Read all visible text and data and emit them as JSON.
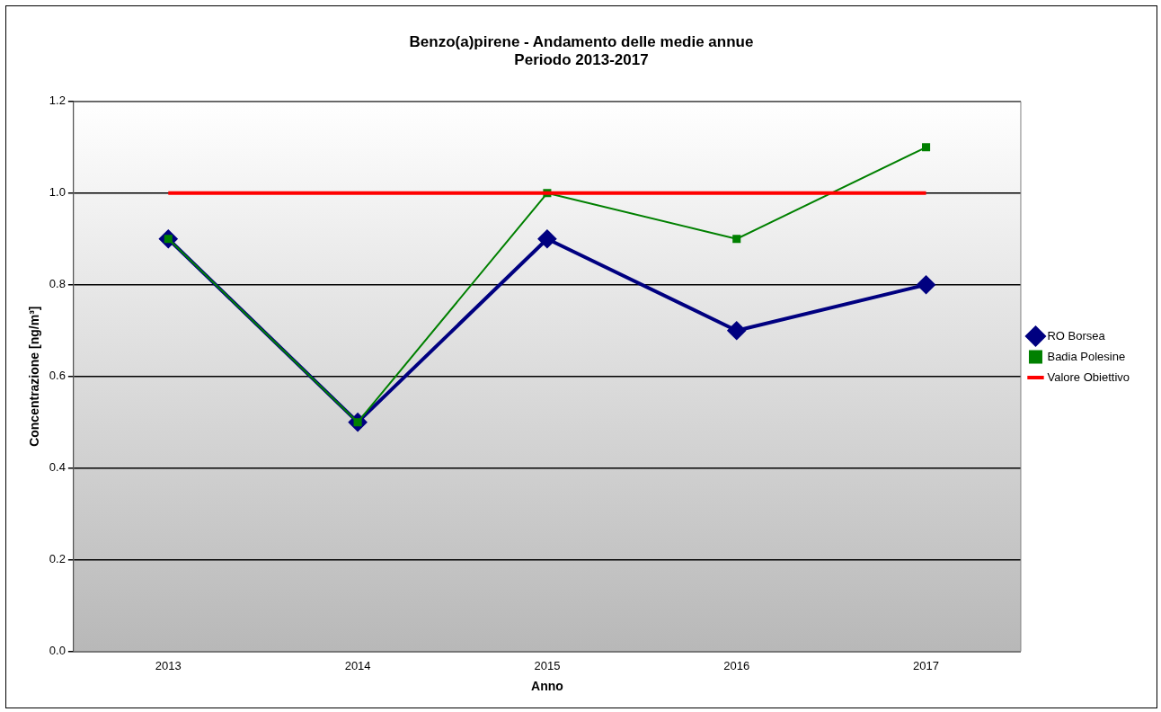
{
  "chart_data": {
    "type": "line",
    "title": "Benzo(a)pirene - Andamento delle medie annue\nPeriodo 2013-2017",
    "xlabel": "Anno",
    "ylabel": "Concentrazione [ng/m³]",
    "categories": [
      "2013",
      "2014",
      "2015",
      "2016",
      "2017"
    ],
    "series": [
      {
        "name": "RO Borsea",
        "color": "#000080",
        "values": [
          0.9,
          0.5,
          0.9,
          0.7,
          0.8
        ],
        "marker": "diamond"
      },
      {
        "name": "Badia Polesine",
        "color": "#008000",
        "values": [
          0.9,
          0.5,
          1.0,
          0.9,
          1.1
        ],
        "marker": "square"
      },
      {
        "name": "Valore Obiettivo",
        "color": "#ff0000",
        "values": [
          1.0,
          1.0,
          1.0,
          1.0,
          1.0
        ],
        "marker": "none"
      }
    ],
    "ylim": [
      0,
      1.2
    ],
    "yticks": [
      {
        "value": 0,
        "label": "0.0"
      },
      {
        "value": 0.2,
        "label": "0.2"
      },
      {
        "value": 0.4,
        "label": "0.4"
      },
      {
        "value": 0.6,
        "label": "0.6"
      },
      {
        "value": 0.8,
        "label": "0.8"
      },
      {
        "value": 1.0,
        "label": "1.0"
      },
      {
        "value": 1.2,
        "label": "1.2"
      }
    ],
    "grid": "y",
    "legend": "right"
  }
}
